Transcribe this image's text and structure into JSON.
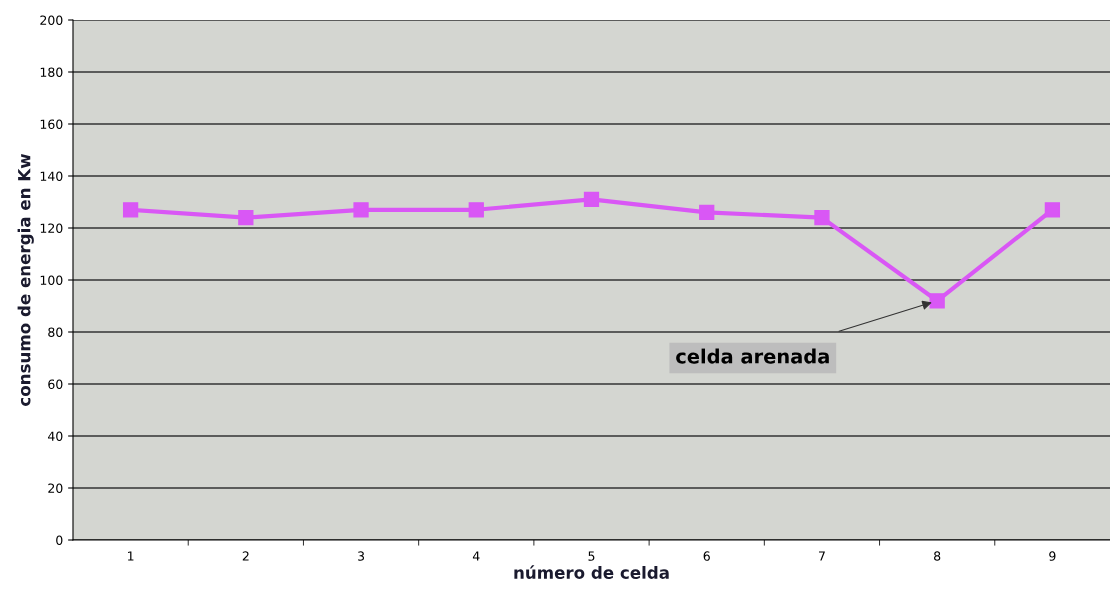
{
  "chart_data": {
    "type": "line",
    "xlabel": "número de celda",
    "ylabel": "consumo de energia en Kw",
    "categories": [
      "1",
      "2",
      "3",
      "4",
      "5",
      "6",
      "7",
      "8",
      "9"
    ],
    "series": [
      {
        "color": "#d957f5",
        "values": [
          127,
          124,
          127,
          127,
          131,
          126,
          124,
          92,
          127
        ]
      }
    ],
    "ylim": [
      0,
      200
    ],
    "yticks": [
      0,
      20,
      40,
      60,
      80,
      100,
      120,
      140,
      160,
      180,
      200
    ],
    "grid": "y",
    "marker": "square",
    "line_style": "solid",
    "annotations": [
      {
        "text": "celda arenada",
        "x": "8",
        "y": 92
      }
    ]
  }
}
